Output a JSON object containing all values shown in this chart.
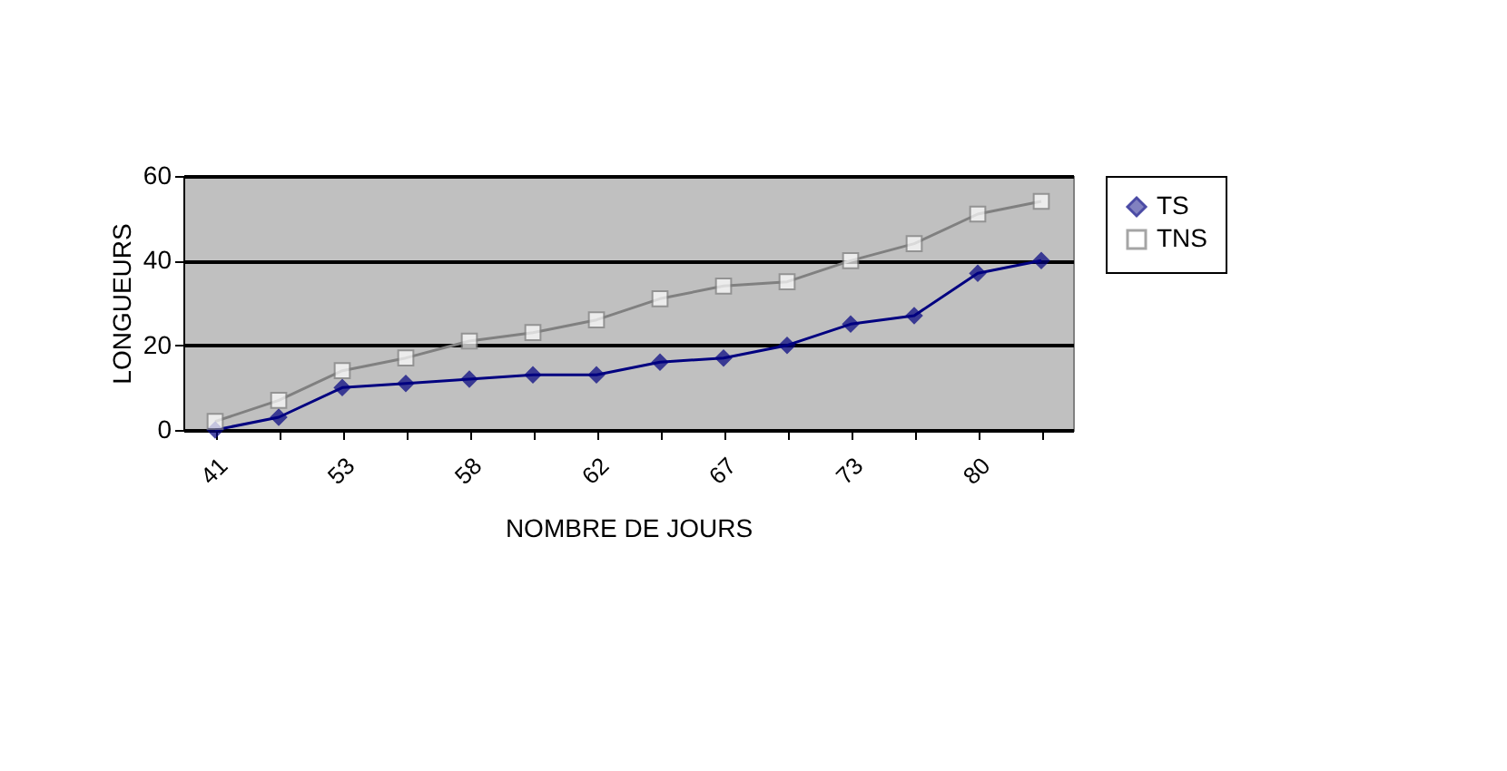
{
  "chart_data": {
    "type": "line",
    "xlabel": "NOMBRE DE JOURS",
    "ylabel": "LONGUEURS",
    "categories": [
      "41",
      null,
      "53",
      null,
      "58",
      null,
      "62",
      null,
      "67",
      null,
      "73",
      null,
      "80",
      null
    ],
    "series": [
      {
        "name": "TS",
        "color": "#000080",
        "marker": "diamond",
        "values": [
          0,
          3,
          10,
          11,
          12,
          13,
          13,
          16,
          17,
          20,
          25,
          27,
          37,
          40
        ]
      },
      {
        "name": "TNS",
        "color": "#ffffff",
        "marker": "square",
        "values": [
          2,
          7,
          14,
          17,
          21,
          23,
          26,
          31,
          34,
          35,
          40,
          44,
          51,
          54
        ]
      }
    ],
    "ylim": [
      0,
      60
    ],
    "yticks": [
      0,
      20,
      40,
      60
    ],
    "grid": "y",
    "legend": "right",
    "line_style": "solid"
  }
}
